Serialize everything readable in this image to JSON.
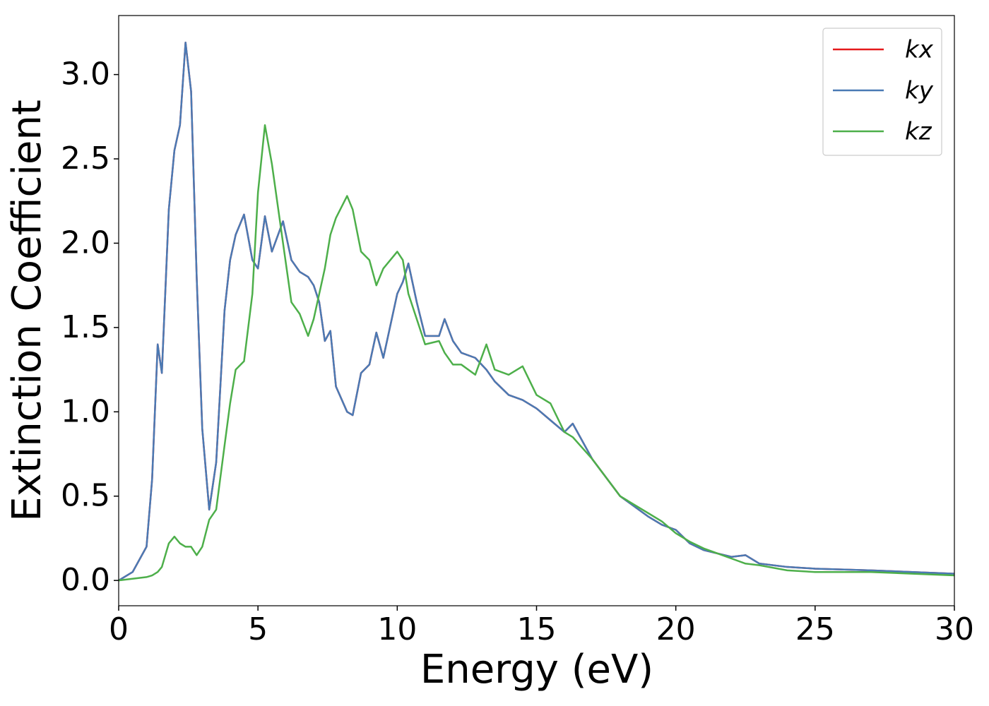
{
  "chart_data": {
    "type": "line",
    "xlabel": "Energy (eV)",
    "ylabel": "Extinction Coefficient",
    "x": [
      0,
      0.5,
      1,
      1.2,
      1.4,
      1.55,
      1.8,
      2,
      2.2,
      2.4,
      2.6,
      2.8,
      3,
      3.25,
      3.5,
      3.8,
      4,
      4.2,
      4.5,
      4.8,
      5,
      5.25,
      5.5,
      5.9,
      6.2,
      6.5,
      6.8,
      7,
      7.2,
      7.4,
      7.6,
      7.8,
      8.2,
      8.4,
      8.7,
      9,
      9.25,
      9.5,
      10,
      10.2,
      10.4,
      10.7,
      11,
      11.5,
      11.7,
      12,
      12.3,
      12.8,
      13.2,
      13.5,
      14,
      14.5,
      15,
      15.5,
      16,
      16.3,
      17,
      18,
      19,
      19.5,
      20,
      20.5,
      21,
      22,
      22.5,
      23,
      24,
      25,
      27,
      30
    ],
    "series": [
      {
        "name": "kx",
        "color": "#e41a1c",
        "values": [
          0,
          0.05,
          0.2,
          0.6,
          1.4,
          1.23,
          2.2,
          2.55,
          2.7,
          3.19,
          2.9,
          1.8,
          0.9,
          0.42,
          0.7,
          1.6,
          1.9,
          2.05,
          2.17,
          1.9,
          1.85,
          2.16,
          1.95,
          2.13,
          1.9,
          1.83,
          1.8,
          1.75,
          1.65,
          1.42,
          1.48,
          1.15,
          1.0,
          0.98,
          1.23,
          1.28,
          1.47,
          1.32,
          1.7,
          1.77,
          1.88,
          1.65,
          1.45,
          1.45,
          1.55,
          1.42,
          1.35,
          1.32,
          1.25,
          1.18,
          1.1,
          1.07,
          1.02,
          0.95,
          0.88,
          0.93,
          0.72,
          0.5,
          0.38,
          0.33,
          0.3,
          0.22,
          0.18,
          0.14,
          0.15,
          0.1,
          0.08,
          0.07,
          0.06,
          0.04
        ]
      },
      {
        "name": "ky",
        "color": "#4a7ab4",
        "values": [
          0,
          0.05,
          0.2,
          0.6,
          1.4,
          1.23,
          2.2,
          2.55,
          2.7,
          3.19,
          2.9,
          1.8,
          0.9,
          0.42,
          0.7,
          1.6,
          1.9,
          2.05,
          2.17,
          1.9,
          1.85,
          2.16,
          1.95,
          2.13,
          1.9,
          1.83,
          1.8,
          1.75,
          1.65,
          1.42,
          1.48,
          1.15,
          1.0,
          0.98,
          1.23,
          1.28,
          1.47,
          1.32,
          1.7,
          1.77,
          1.88,
          1.65,
          1.45,
          1.45,
          1.55,
          1.42,
          1.35,
          1.32,
          1.25,
          1.18,
          1.1,
          1.07,
          1.02,
          0.95,
          0.88,
          0.93,
          0.72,
          0.5,
          0.38,
          0.33,
          0.3,
          0.22,
          0.18,
          0.14,
          0.15,
          0.1,
          0.08,
          0.07,
          0.06,
          0.04
        ]
      },
      {
        "name": "kz",
        "color": "#4daf4a",
        "values": [
          0,
          0.01,
          0.02,
          0.03,
          0.05,
          0.08,
          0.22,
          0.26,
          0.22,
          0.2,
          0.2,
          0.15,
          0.2,
          0.36,
          0.42,
          0.8,
          1.05,
          1.25,
          1.3,
          1.7,
          2.3,
          2.7,
          2.47,
          2.0,
          1.65,
          1.58,
          1.45,
          1.55,
          1.7,
          1.85,
          2.05,
          2.15,
          2.28,
          2.2,
          1.95,
          1.9,
          1.75,
          1.85,
          1.95,
          1.9,
          1.7,
          1.55,
          1.4,
          1.42,
          1.35,
          1.28,
          1.28,
          1.22,
          1.4,
          1.25,
          1.22,
          1.27,
          1.1,
          1.05,
          0.88,
          0.85,
          0.72,
          0.5,
          0.4,
          0.35,
          0.28,
          0.23,
          0.19,
          0.13,
          0.1,
          0.09,
          0.06,
          0.05,
          0.05,
          0.03
        ]
      }
    ],
    "xlim": [
      0,
      30
    ],
    "xticks": [
      0,
      5,
      10,
      15,
      20,
      25,
      30
    ],
    "ylim": [
      -0.15,
      3.35
    ],
    "yticks": [
      {
        "value": 0,
        "label": "0.0"
      },
      0.5,
      {
        "value": 1,
        "label": "1.0"
      },
      1.5,
      {
        "value": 2,
        "label": "2.0"
      },
      2.5,
      {
        "value": 3,
        "label": "3.0"
      }
    ],
    "grid": false,
    "legend": "upper right"
  }
}
